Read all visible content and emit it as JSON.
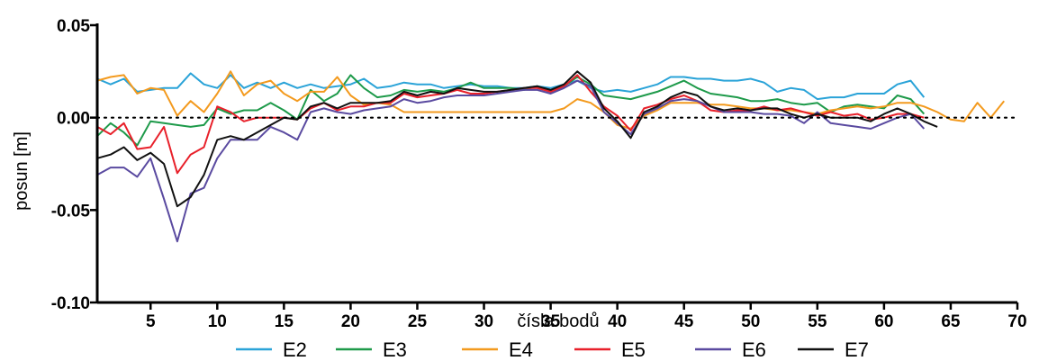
{
  "chart_data": {
    "type": "line",
    "title": "",
    "xlabel": "čísla bodů",
    "ylabel": "posun [m]",
    "xlim": [
      1,
      70
    ],
    "ylim": [
      -0.1,
      0.05
    ],
    "xticks": [
      5,
      10,
      15,
      20,
      25,
      30,
      35,
      40,
      45,
      50,
      55,
      60,
      65,
      70
    ],
    "xtick_labels": [
      "5",
      "10",
      "15",
      "20",
      "25",
      "30",
      "35",
      "40",
      "45",
      "50",
      "55",
      "60",
      "65",
      "70"
    ],
    "yticks": [
      0.05,
      0.0,
      -0.05,
      -0.1
    ],
    "ytick_labels": [
      "0.05",
      "0.00",
      "-0.05",
      "-0.10"
    ],
    "zero_line": "dotted",
    "grid": false,
    "legend_position": "bottom",
    "series": [
      {
        "name": "E2",
        "color": "#2aa3d8",
        "x": [
          1,
          2,
          3,
          4,
          5,
          6,
          7,
          8,
          9,
          10,
          11,
          12,
          13,
          14,
          15,
          16,
          17,
          18,
          19,
          20,
          21,
          22,
          23,
          24,
          25,
          26,
          27,
          28,
          29,
          30,
          31,
          32,
          33,
          34,
          35,
          36,
          37,
          38,
          39,
          40,
          41,
          42,
          43,
          44,
          45,
          46,
          47,
          48,
          49,
          50,
          51,
          52,
          53,
          54,
          55,
          56,
          57,
          58,
          59,
          60,
          61,
          62,
          63
        ],
        "values": [
          0.021,
          0.018,
          0.021,
          0.014,
          0.015,
          0.016,
          0.016,
          0.024,
          0.018,
          0.016,
          0.023,
          0.016,
          0.019,
          0.016,
          0.019,
          0.016,
          0.018,
          0.016,
          0.017,
          0.018,
          0.021,
          0.016,
          0.017,
          0.019,
          0.018,
          0.018,
          0.016,
          0.017,
          0.018,
          0.017,
          0.017,
          0.016,
          0.016,
          0.017,
          0.016,
          0.018,
          0.02,
          0.016,
          0.014,
          0.015,
          0.014,
          0.016,
          0.018,
          0.022,
          0.022,
          0.021,
          0.021,
          0.02,
          0.02,
          0.021,
          0.019,
          0.014,
          0.016,
          0.015,
          0.01,
          0.011,
          0.011,
          0.013,
          0.013,
          0.013,
          0.018,
          0.02,
          0.011
        ]
      },
      {
        "name": "E3",
        "color": "#1e9a4a",
        "x": [
          1,
          2,
          3,
          4,
          5,
          6,
          7,
          8,
          9,
          10,
          11,
          12,
          13,
          14,
          15,
          16,
          17,
          18,
          19,
          20,
          21,
          22,
          23,
          24,
          25,
          26,
          27,
          28,
          29,
          30,
          31,
          32,
          33,
          34,
          35,
          36,
          37,
          38,
          39,
          40,
          41,
          42,
          43,
          44,
          45,
          46,
          47,
          48,
          49,
          50,
          51,
          52,
          53,
          54,
          55,
          56,
          57,
          58,
          59,
          60,
          61,
          62,
          63
        ],
        "values": [
          -0.01,
          -0.003,
          -0.008,
          -0.015,
          -0.002,
          -0.003,
          -0.004,
          -0.005,
          -0.004,
          0.005,
          0.002,
          0.004,
          0.004,
          0.008,
          0.004,
          -0.001,
          0.015,
          0.009,
          0.013,
          0.023,
          0.016,
          0.011,
          0.012,
          0.015,
          0.014,
          0.015,
          0.014,
          0.016,
          0.019,
          0.016,
          0.016,
          0.016,
          0.015,
          0.017,
          0.014,
          0.017,
          0.022,
          0.018,
          0.012,
          0.011,
          0.01,
          0.012,
          0.014,
          0.017,
          0.02,
          0.016,
          0.013,
          0.012,
          0.011,
          0.009,
          0.009,
          0.01,
          0.008,
          0.007,
          0.008,
          0.003,
          0.006,
          0.007,
          0.006,
          0.005,
          0.012,
          0.01,
          0.002
        ]
      },
      {
        "name": "E4",
        "color": "#f39a1e",
        "x": [
          1,
          2,
          3,
          4,
          5,
          6,
          7,
          8,
          9,
          10,
          11,
          12,
          13,
          14,
          15,
          16,
          17,
          18,
          19,
          20,
          21,
          22,
          23,
          24,
          25,
          26,
          27,
          28,
          29,
          30,
          31,
          32,
          33,
          34,
          35,
          36,
          37,
          38,
          39,
          40,
          41,
          42,
          43,
          44,
          45,
          46,
          47,
          48,
          49,
          50,
          51,
          52,
          53,
          54,
          55,
          56,
          57,
          58,
          59,
          60,
          61,
          62,
          63,
          64,
          65,
          66,
          67,
          68,
          69
        ],
        "values": [
          0.02,
          0.022,
          0.023,
          0.013,
          0.016,
          0.015,
          0.001,
          0.009,
          0.003,
          0.013,
          0.025,
          0.012,
          0.018,
          0.02,
          0.013,
          0.009,
          0.014,
          0.014,
          0.022,
          0.012,
          0.007,
          0.008,
          0.007,
          0.003,
          0.003,
          0.003,
          0.003,
          0.003,
          0.003,
          0.003,
          0.003,
          0.003,
          0.003,
          0.003,
          0.003,
          0.005,
          0.01,
          0.008,
          0.003,
          -0.004,
          -0.006,
          0.001,
          0.004,
          0.008,
          0.008,
          0.008,
          0.007,
          0.007,
          0.006,
          0.005,
          0.005,
          0.004,
          0.004,
          0.003,
          0.002,
          0.004,
          0.005,
          0.006,
          0.005,
          0.006,
          0.008,
          0.008,
          0.006,
          0.003,
          -0.001,
          -0.002,
          0.008,
          0.0,
          0.009
        ]
      },
      {
        "name": "E5",
        "color": "#e8202a",
        "x": [
          1,
          2,
          3,
          4,
          5,
          6,
          7,
          8,
          9,
          10,
          11,
          12,
          13,
          14,
          15,
          16,
          17,
          18,
          19,
          20,
          21,
          22,
          23,
          24,
          25,
          26,
          27,
          28,
          29,
          30,
          31,
          32,
          33,
          34,
          35,
          36,
          37,
          38,
          39,
          40,
          41,
          42,
          43,
          44,
          45,
          46,
          47,
          48,
          49,
          50,
          51,
          52,
          53,
          54,
          55,
          56,
          57,
          58,
          59,
          60,
          61,
          62,
          63
        ],
        "values": [
          -0.005,
          -0.009,
          -0.003,
          -0.017,
          -0.016,
          -0.005,
          -0.03,
          -0.02,
          -0.016,
          0.006,
          0.003,
          -0.002,
          0.0,
          0.0,
          0.0,
          -0.001,
          0.005,
          0.008,
          0.004,
          0.006,
          0.006,
          0.008,
          0.008,
          0.013,
          0.011,
          0.012,
          0.013,
          0.015,
          0.013,
          0.013,
          0.014,
          0.015,
          0.016,
          0.016,
          0.014,
          0.017,
          0.023,
          0.014,
          0.006,
          0.001,
          -0.007,
          0.005,
          0.007,
          0.01,
          0.012,
          0.009,
          0.004,
          0.003,
          0.004,
          0.004,
          0.006,
          0.004,
          0.005,
          0.003,
          0.001,
          0.003,
          0.001,
          0.002,
          -0.001,
          0.0,
          0.002,
          0.002,
          0.0
        ]
      },
      {
        "name": "E6",
        "color": "#5a4aa0",
        "x": [
          1,
          2,
          3,
          4,
          5,
          6,
          7,
          8,
          9,
          10,
          11,
          12,
          13,
          14,
          15,
          16,
          17,
          18,
          19,
          20,
          21,
          22,
          23,
          24,
          25,
          26,
          27,
          28,
          29,
          30,
          31,
          32,
          33,
          34,
          35,
          36,
          37,
          38,
          39,
          40,
          41,
          42,
          43,
          44,
          45,
          46,
          47,
          48,
          49,
          50,
          51,
          52,
          53,
          54,
          55,
          56,
          57,
          58,
          59,
          60,
          61,
          62,
          63
        ],
        "values": [
          -0.031,
          -0.027,
          -0.027,
          -0.032,
          -0.022,
          -0.044,
          -0.067,
          -0.041,
          -0.038,
          -0.022,
          -0.012,
          -0.012,
          -0.012,
          -0.005,
          -0.008,
          -0.012,
          0.003,
          0.005,
          0.003,
          0.002,
          0.004,
          0.005,
          0.006,
          0.01,
          0.008,
          0.009,
          0.011,
          0.012,
          0.012,
          0.012,
          0.013,
          0.014,
          0.015,
          0.015,
          0.013,
          0.016,
          0.02,
          0.017,
          0.003,
          -0.003,
          -0.009,
          0.002,
          0.005,
          0.009,
          0.01,
          0.009,
          0.006,
          0.003,
          0.003,
          0.003,
          0.002,
          0.002,
          0.001,
          -0.003,
          0.003,
          -0.003,
          -0.004,
          -0.005,
          -0.006,
          -0.003,
          0.0,
          0.002,
          -0.006
        ]
      },
      {
        "name": "E7",
        "color": "#111111",
        "x": [
          1,
          2,
          3,
          4,
          5,
          6,
          7,
          8,
          9,
          10,
          11,
          12,
          13,
          14,
          15,
          16,
          17,
          18,
          19,
          20,
          21,
          22,
          23,
          24,
          25,
          26,
          27,
          28,
          29,
          30,
          31,
          32,
          33,
          34,
          35,
          36,
          37,
          38,
          39,
          40,
          41,
          42,
          43,
          44,
          45,
          46,
          47,
          48,
          49,
          50,
          51,
          52,
          53,
          54,
          55,
          56,
          57,
          58,
          59,
          60,
          61,
          62,
          63,
          64
        ],
        "values": [
          -0.022,
          -0.02,
          -0.016,
          -0.023,
          -0.019,
          -0.025,
          -0.048,
          -0.043,
          -0.031,
          -0.012,
          -0.01,
          -0.012,
          -0.008,
          -0.004,
          0.0,
          -0.001,
          0.006,
          0.008,
          0.005,
          0.008,
          0.008,
          0.008,
          0.009,
          0.014,
          0.012,
          0.014,
          0.013,
          0.016,
          0.015,
          0.014,
          0.014,
          0.015,
          0.016,
          0.017,
          0.015,
          0.018,
          0.025,
          0.019,
          0.005,
          -0.002,
          -0.011,
          0.003,
          0.006,
          0.011,
          0.014,
          0.012,
          0.006,
          0.004,
          0.005,
          0.004,
          0.005,
          0.005,
          0.002,
          0.0,
          0.002,
          0.0,
          0.0,
          0.0,
          -0.002,
          0.002,
          0.005,
          0.002,
          -0.002,
          -0.005
        ]
      }
    ]
  }
}
